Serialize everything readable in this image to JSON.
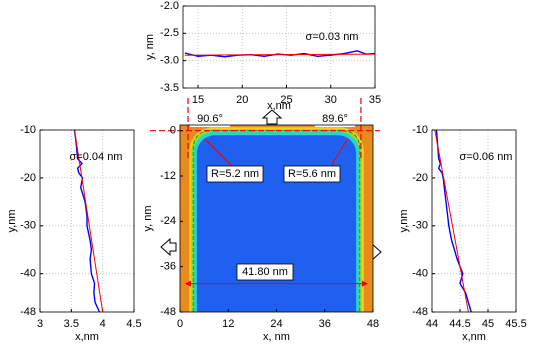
{
  "chart_data": [
    {
      "type": "line",
      "annotation": "σ=0.03 nm",
      "xlabel": "x,nm",
      "ylabel": "y, nm",
      "xlim": [
        13.3,
        35
      ],
      "ylim": [
        -3.5,
        -2
      ],
      "xticks": [
        15,
        20,
        25,
        30,
        35
      ],
      "yticks": [
        -3.5,
        {
          "value": -3,
          "label": "-3.0"
        },
        -2.5,
        {
          "value": -2,
          "label": "-2.0"
        }
      ],
      "grid": true,
      "series": [
        {
          "color": "#0000ff",
          "x": [
            13.5,
            15,
            16.5,
            18,
            19.5,
            21,
            22.5,
            24,
            25.5,
            27,
            28.5,
            30,
            31.5,
            33,
            34,
            35
          ],
          "values": [
            -2.86,
            -2.92,
            -2.9,
            -2.93,
            -2.9,
            -2.89,
            -2.92,
            -2.88,
            -2.9,
            -2.87,
            -2.92,
            -2.9,
            -2.87,
            -2.82,
            -2.88,
            -2.87
          ]
        },
        {
          "color": "#ff0000",
          "x": [
            13.5,
            35
          ],
          "values": [
            -2.9,
            -2.88
          ]
        }
      ]
    },
    {
      "type": "line",
      "annotation": "σ=0.04 nm",
      "xlabel": "x,nm",
      "ylabel": "y,nm",
      "xlim": [
        3,
        4.5
      ],
      "ylim": [
        -48,
        -10
      ],
      "xticks": [
        3,
        3.5,
        4,
        4.5
      ],
      "yticks": [
        -10,
        -20,
        -30,
        -40,
        -48
      ],
      "grid": true,
      "series": [
        {
          "color": "#0000ff",
          "x": [
            3.55,
            3.58,
            3.6,
            3.67,
            3.6,
            3.62,
            3.68,
            3.65,
            3.72,
            3.75,
            3.75,
            3.8,
            3.82,
            3.8,
            3.82,
            3.87,
            3.86,
            3.88,
            3.95
          ],
          "values": [
            -10,
            -13,
            -16,
            -17,
            -18,
            -19,
            -20,
            -22,
            -25,
            -28,
            -30,
            -33,
            -35,
            -37,
            -40,
            -42,
            -44,
            -46,
            -48
          ]
        },
        {
          "color": "#ff0000",
          "x": [
            3.55,
            4.0
          ],
          "values": [
            -10,
            -48
          ]
        }
      ]
    },
    {
      "type": "image",
      "xlabel": "x, nm",
      "ylabel": "y, nm",
      "xlim": [
        0,
        48
      ],
      "ylim": [
        -48,
        1.5
      ],
      "xticks": [
        0,
        12,
        24,
        36,
        48
      ],
      "yticks": [
        0,
        -12,
        -24,
        -36,
        -48
      ],
      "annotations": [
        "90.6°",
        "89.6°",
        "R=5.2 nm",
        "R=5.6 nm",
        "41.80 nm"
      ]
    },
    {
      "type": "line",
      "annotation": "σ=0.06 nm",
      "xlabel": "x,nm",
      "ylabel": "y,nm",
      "xlim": [
        44,
        45.5
      ],
      "ylim": [
        -48,
        -10
      ],
      "xticks": [
        44,
        44.5,
        45,
        45.5
      ],
      "yticks": [
        -10,
        -20,
        -30,
        -40,
        -48
      ],
      "grid": true,
      "series": [
        {
          "color": "#0000ff",
          "x": [
            44.08,
            44.1,
            44.12,
            44.15,
            44.12,
            44.18,
            44.2,
            44.22,
            44.25,
            44.28,
            44.3,
            44.35,
            44.4,
            44.45,
            44.55,
            44.5,
            44.6,
            44.65,
            44.7
          ],
          "values": [
            -10,
            -13,
            -16,
            -17,
            -18,
            -19,
            -20,
            -22,
            -25,
            -28,
            -30,
            -33,
            -35,
            -37,
            -40,
            -42,
            -44,
            -46,
            -48
          ]
        },
        {
          "color": "#ff0000",
          "x": [
            44.05,
            44.65
          ],
          "values": [
            -10,
            -48
          ]
        }
      ]
    }
  ]
}
